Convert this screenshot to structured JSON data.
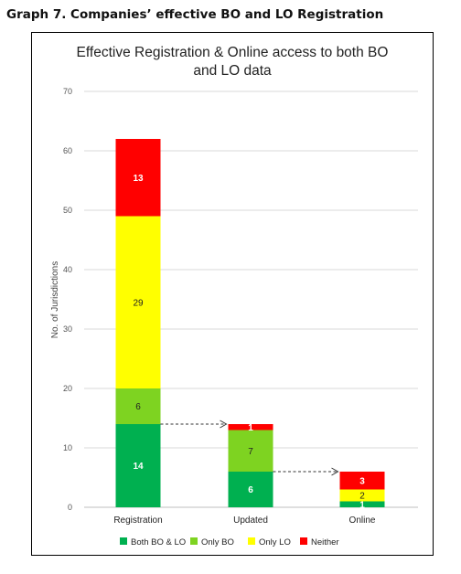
{
  "heading": "Graph 7. Companies’ effective BO and LO Registration",
  "chart_data": {
    "type": "bar",
    "stacked": true,
    "title_lines": [
      "Effective Registration & Online access to both BO",
      "and LO data"
    ],
    "ylabel": "No. of Jurisdictions",
    "ylim": [
      0,
      70
    ],
    "yticks": [
      0,
      10,
      20,
      30,
      40,
      50,
      60,
      70
    ],
    "grid": true,
    "legend_position": "bottom",
    "categories": [
      "Registration",
      "Updated",
      "Online"
    ],
    "series": [
      {
        "name": "Both BO & LO",
        "color": "#00b050",
        "label_color": "#ffffff",
        "values": [
          14,
          6,
          1
        ]
      },
      {
        "name": "Only BO",
        "color": "#7ed321",
        "label_color": "#222222",
        "values": [
          6,
          7,
          0
        ]
      },
      {
        "name": "Only LO",
        "color": "#ffff00",
        "label_color": "#222222",
        "values": [
          29,
          0,
          2
        ]
      },
      {
        "name": "Neither",
        "color": "#ff0000",
        "label_color": "#ffffff",
        "values": [
          13,
          1,
          3
        ]
      }
    ],
    "annotations": [
      {
        "type": "dashed-arrow",
        "from": "Registration",
        "to": "Updated",
        "at_value": 14
      },
      {
        "type": "dashed-arrow",
        "from": "Updated",
        "to": "Online",
        "at_value": 6
      }
    ]
  }
}
